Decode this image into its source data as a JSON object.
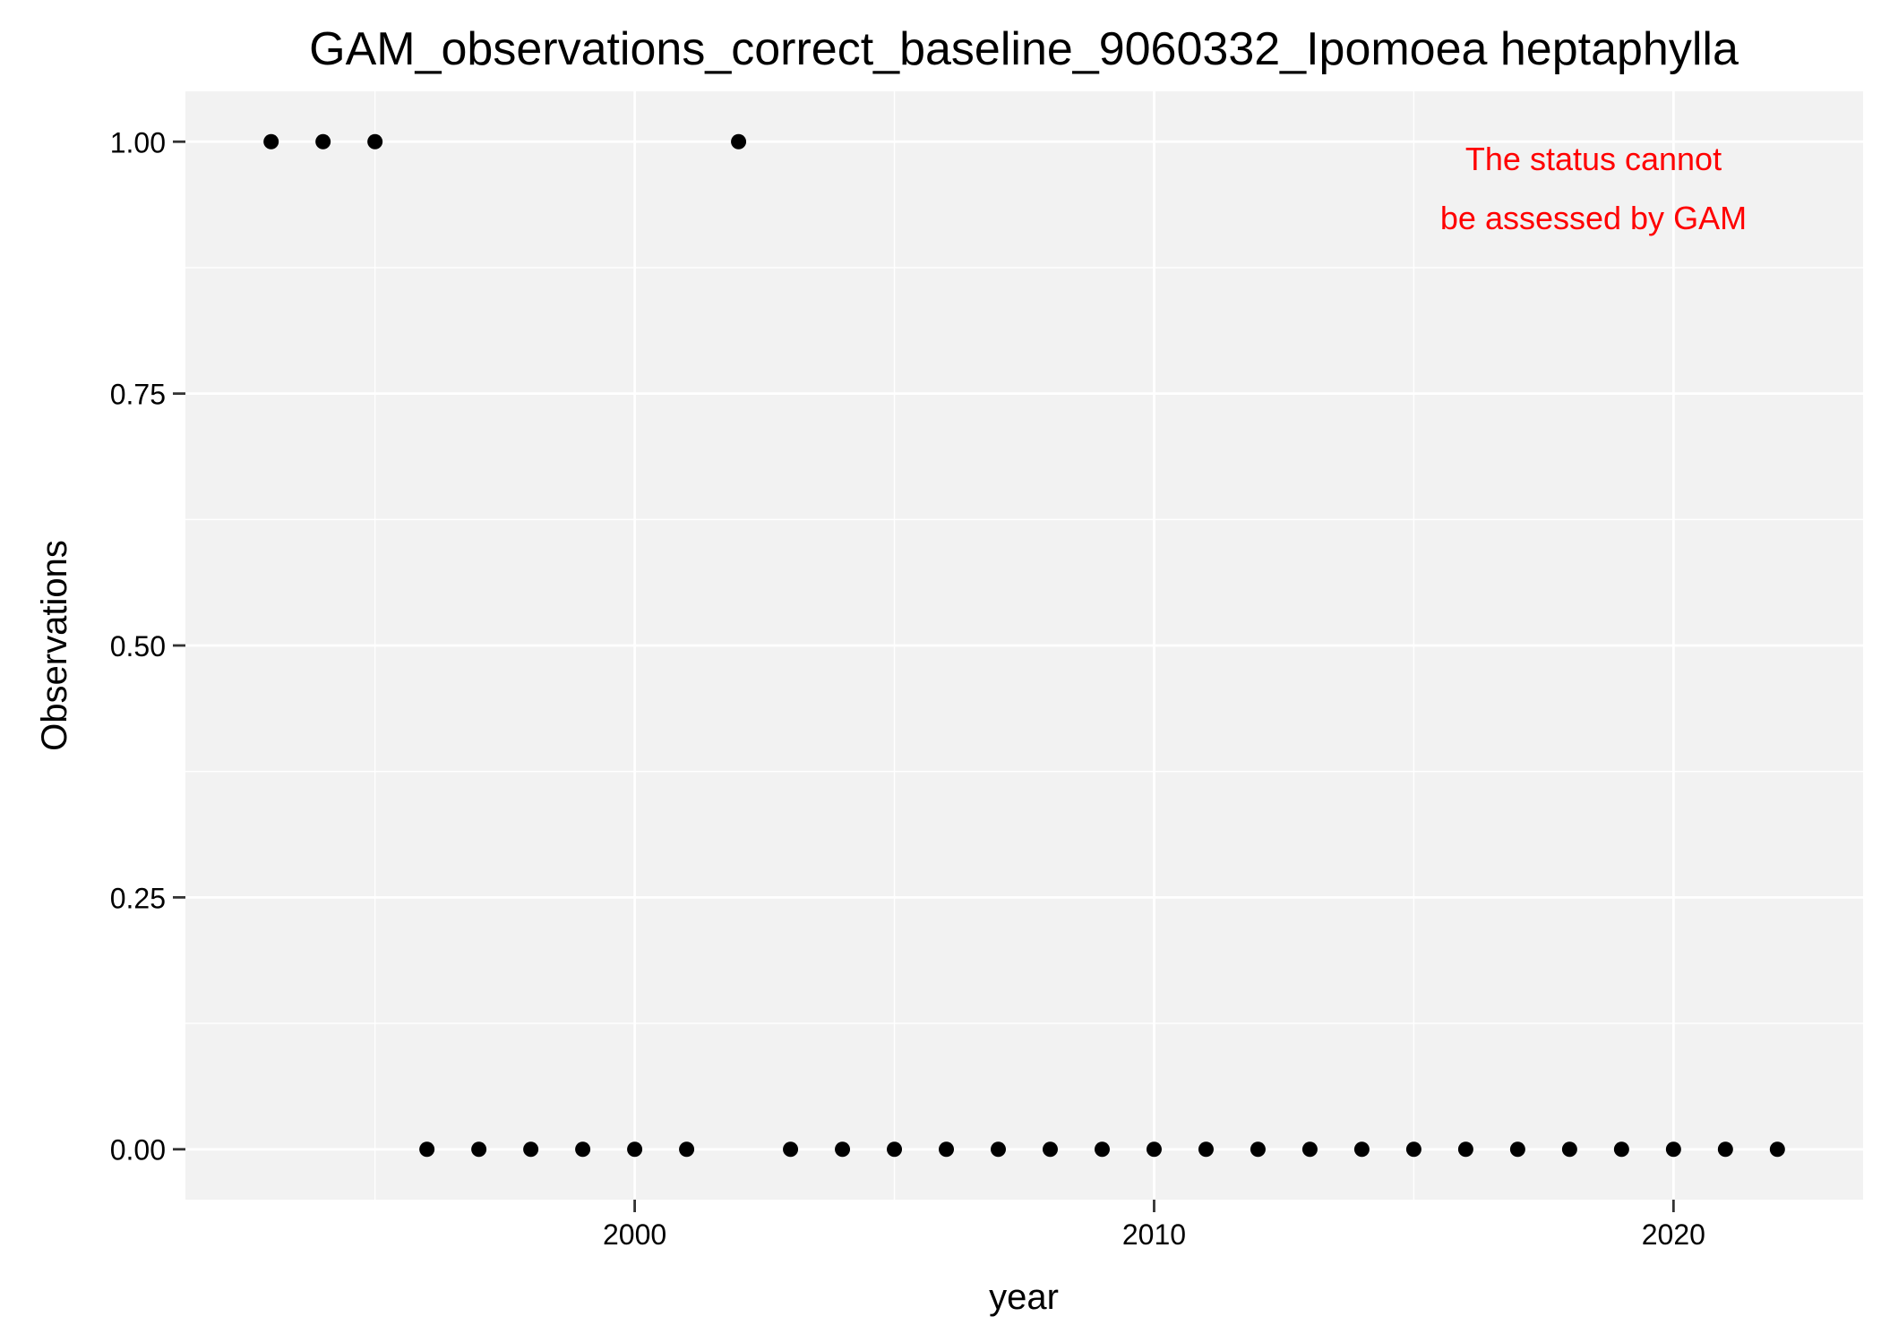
{
  "chart_data": {
    "type": "scatter",
    "title": "GAM_observations_correct_baseline_9060332_Ipomoea heptaphylla",
    "xlabel": "year",
    "ylabel": "Observations",
    "annotation": [
      "The status cannot",
      "be assessed by GAM"
    ],
    "annotation_color": "#ff0000",
    "panel_color": "#f2f2f2",
    "grid": true,
    "xlim": [
      1991.35,
      2023.65
    ],
    "ylim": [
      -0.05,
      1.05
    ],
    "x_ticks": [
      2000,
      2010,
      2020
    ],
    "x_tick_labels": [
      "2000",
      "2010",
      "2020"
    ],
    "y_ticks": [
      0,
      0.25,
      0.5,
      0.75,
      1
    ],
    "y_tick_labels": [
      "0.00",
      "0.25",
      "0.50",
      "0.75",
      "1.00"
    ],
    "series": [
      {
        "x": [
          1993,
          1994,
          1995,
          1996,
          1997,
          1998,
          1999,
          2000,
          2001,
          2002,
          2003,
          2004,
          2005,
          2006,
          2007,
          2008,
          2009,
          2010,
          2011,
          2012,
          2013,
          2014,
          2015,
          2016,
          2017,
          2018,
          2019,
          2020,
          2021,
          2022
        ],
        "y": [
          1,
          1,
          1,
          0,
          0,
          0,
          0,
          0,
          0,
          1,
          0,
          0,
          0,
          0,
          0,
          0,
          0,
          0,
          0,
          0,
          0,
          0,
          0,
          0,
          0,
          0,
          0,
          0,
          0,
          0
        ],
        "color": "#000000"
      }
    ]
  }
}
